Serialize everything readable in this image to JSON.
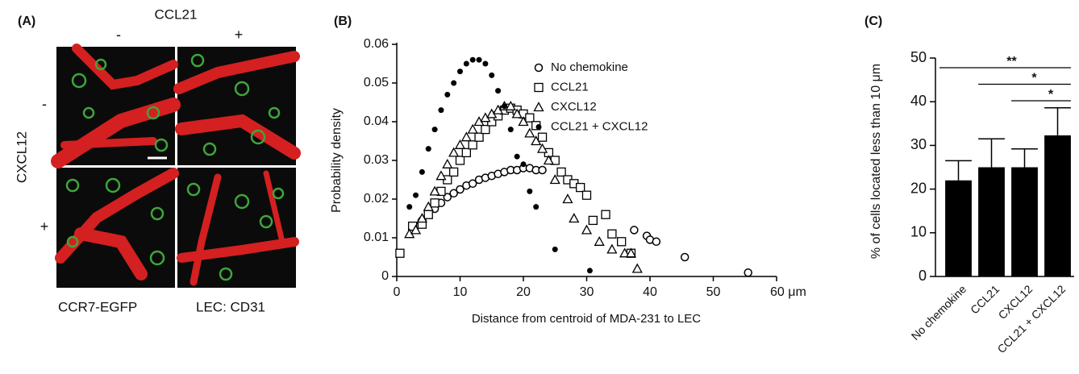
{
  "panel_a": {
    "label": "(A)",
    "column_title": "CCL21",
    "column_labels": [
      "-",
      "+"
    ],
    "row_title": "CXCL12",
    "row_labels": [
      "-",
      "+"
    ],
    "legend": [
      {
        "text": "CCR7-EGFP",
        "color": "#2e9e3a"
      },
      {
        "text": "LEC: CD31",
        "color": "#e0262a"
      }
    ]
  },
  "chart_data": [
    {
      "type": "scatter",
      "panel_label": "(B)",
      "y_label": "Probability density",
      "x_label": "Distance from centroid of MDA-231 to LEC",
      "xlim": [
        0,
        60
      ],
      "xticks": [
        0,
        10,
        20,
        30,
        40,
        50,
        {
          "value": 60,
          "label": "60 μm"
        }
      ],
      "ylim": [
        0,
        0.06
      ],
      "yticks": [
        0,
        0.01,
        0.02,
        0.03,
        0.04,
        0.05,
        0.06
      ],
      "legend": "top-right",
      "series": [
        {
          "name": "No chemokine",
          "marker": "circle-open",
          "color": "#000000",
          "x": [
            3,
            4,
            5,
            6,
            7,
            8,
            9,
            10,
            11,
            12,
            13,
            14,
            15,
            16,
            17,
            18,
            19,
            20,
            21,
            22,
            23,
            37.5,
            39.5,
            40,
            41,
            45.5,
            55.5
          ],
          "values": [
            0.013,
            0.0145,
            0.016,
            0.0175,
            0.019,
            0.0205,
            0.0215,
            0.0225,
            0.0235,
            0.024,
            0.025,
            0.0255,
            0.026,
            0.0265,
            0.027,
            0.0275,
            0.0275,
            0.028,
            0.028,
            0.0275,
            0.0275,
            0.012,
            0.0105,
            0.0095,
            0.009,
            0.005,
            0.001
          ]
        },
        {
          "name": "CCL21",
          "marker": "square-open",
          "color": "#000000",
          "x": [
            0.5,
            2.5,
            4,
            5,
            6,
            7,
            8,
            9,
            10,
            11,
            12,
            13,
            14,
            15,
            16,
            17,
            18,
            19,
            20,
            21,
            22,
            23,
            24,
            25,
            26,
            27,
            28,
            29,
            30,
            31,
            33,
            34,
            35.5,
            37
          ],
          "values": [
            0.006,
            0.013,
            0.0135,
            0.016,
            0.019,
            0.022,
            0.025,
            0.027,
            0.03,
            0.032,
            0.034,
            0.036,
            0.038,
            0.04,
            0.0415,
            0.043,
            0.0435,
            0.043,
            0.042,
            0.041,
            0.039,
            0.036,
            0.032,
            0.03,
            0.027,
            0.025,
            0.024,
            0.023,
            0.021,
            0.0145,
            0.016,
            0.011,
            0.009,
            0.006
          ]
        },
        {
          "name": "CXCL12",
          "marker": "triangle-open",
          "color": "#000000",
          "x": [
            2,
            3,
            4,
            5,
            6,
            7,
            8,
            9,
            10,
            11,
            12,
            13,
            14,
            15,
            16,
            17,
            18,
            19,
            20,
            21,
            22,
            23,
            24,
            25,
            27,
            28,
            30,
            32,
            34,
            36,
            37,
            38
          ],
          "values": [
            0.011,
            0.012,
            0.015,
            0.018,
            0.022,
            0.026,
            0.029,
            0.032,
            0.034,
            0.036,
            0.038,
            0.04,
            0.041,
            0.042,
            0.043,
            0.044,
            0.044,
            0.042,
            0.04,
            0.037,
            0.035,
            0.033,
            0.03,
            0.025,
            0.02,
            0.015,
            0.012,
            0.009,
            0.007,
            0.006,
            0.006,
            0.002
          ]
        },
        {
          "name": "CCL21 + CXCL12",
          "marker": "circle-filled",
          "color": "#000000",
          "x": [
            2,
            3,
            4,
            5,
            6,
            7,
            8,
            9,
            10,
            11,
            12,
            13,
            14,
            15,
            16,
            17,
            18,
            19,
            20,
            21,
            22,
            25,
            30.5
          ],
          "values": [
            0.018,
            0.021,
            0.027,
            0.033,
            0.038,
            0.043,
            0.047,
            0.05,
            0.053,
            0.055,
            0.056,
            0.056,
            0.055,
            0.052,
            0.048,
            0.044,
            0.038,
            0.031,
            0.029,
            0.022,
            0.018,
            0.007,
            0.0015
          ]
        }
      ]
    },
    {
      "type": "bar",
      "panel_label": "(C)",
      "y_label": "% of cells located less than 10 μm",
      "categories": [
        "No chemokine",
        "CCL21",
        "CXCL12",
        "CCL21 + CXCL12"
      ],
      "values": [
        22,
        25,
        25,
        32.3
      ],
      "errors": [
        4.5,
        6.5,
        4.2,
        6.3
      ],
      "color": "#000000",
      "ylim": [
        0,
        50
      ],
      "yticks": [
        0,
        10,
        20,
        30,
        40,
        50
      ],
      "annotations": [
        {
          "text": "**",
          "between": [
            "No chemokine",
            "CCL21 + CXCL12"
          ]
        },
        {
          "text": "*",
          "between": [
            "CCL21",
            "CCL21 + CXCL12"
          ]
        },
        {
          "text": "*",
          "between": [
            "CXCL12",
            "CCL21 + CXCL12"
          ]
        }
      ]
    }
  ]
}
